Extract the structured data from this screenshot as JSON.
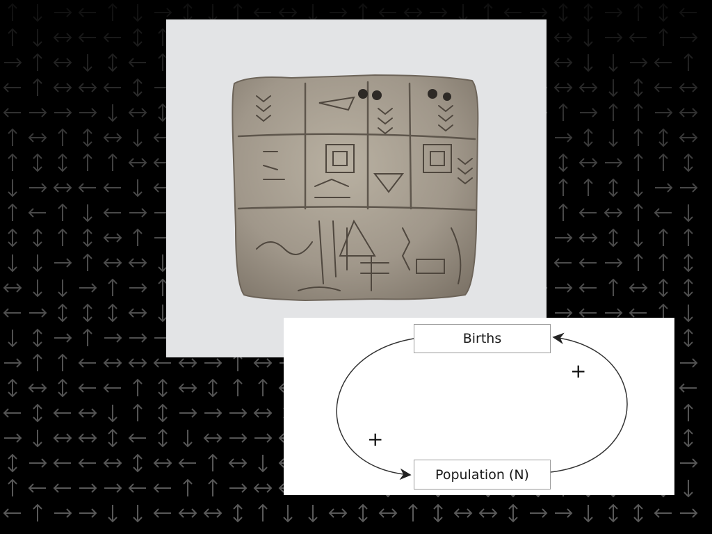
{
  "colors": {
    "background": "#000000",
    "arrow_pattern": "#5a5a5a",
    "photo_backdrop": "#e3e4e6",
    "tablet_clay": "#a29a8c",
    "diagram_background": "#ffffff",
    "diagram_stroke": "#333333"
  },
  "photo": {
    "subject": "cuneiform-clay-tablet-icon"
  },
  "diagram": {
    "nodes": {
      "top": "Births",
      "bottom": "Population (N)"
    },
    "links": {
      "births_to_population": "+",
      "population_to_births": "+"
    }
  }
}
